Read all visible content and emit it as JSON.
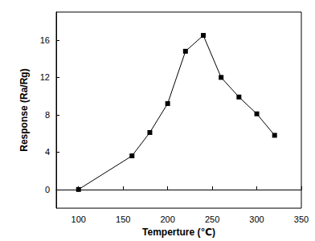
{
  "chart_data": {
    "type": "line",
    "x_label": "Temperture (℃)",
    "y_label": "Response (Ra/Rg)",
    "x": [
      100,
      160,
      180,
      200,
      220,
      240,
      260,
      280,
      300,
      320
    ],
    "values": [
      0,
      3.6,
      6.1,
      9.2,
      14.8,
      16.5,
      12,
      9.9,
      8.1,
      5.8
    ],
    "color": "#000000",
    "marker": "square",
    "xlim": [
      75,
      350
    ],
    "xticks": [
      100,
      150,
      200,
      250,
      300,
      350
    ],
    "ylim": [
      -2,
      19
    ],
    "yticks": [
      0,
      4,
      8,
      12,
      16
    ],
    "grid": false
  }
}
